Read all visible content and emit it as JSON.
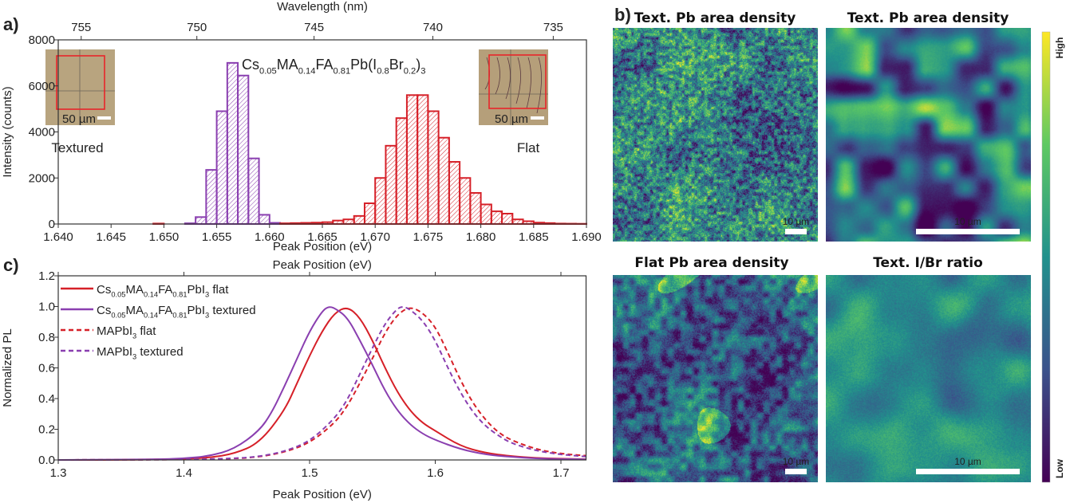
{
  "panels": {
    "a": "a)",
    "b": "b)",
    "c": "c)"
  },
  "colors": {
    "flat": "#d62028",
    "textured": "#8a3fb0",
    "axis": "#333333"
  },
  "chart_data": [
    {
      "type": "bar",
      "panel": "a",
      "xlabel": "Peak Position (eV)",
      "ylabel": "Intensity (counts)",
      "top_xlabel": "Wavelength (nm)",
      "xlim": [
        1.64,
        1.69
      ],
      "ylim": [
        0,
        8000
      ],
      "xticks": [
        "1.640",
        "1.645",
        "1.650",
        "1.655",
        "1.660",
        "1.665",
        "1.670",
        "1.675",
        "1.680",
        "1.685",
        "1.690"
      ],
      "yticks": [
        "0",
        "2000",
        "4000",
        "6000",
        "8000"
      ],
      "top_xticks": [
        "755",
        "750",
        "745",
        "740",
        "735"
      ],
      "title_segments": [
        {
          "t": "Cs"
        },
        {
          "t": "0.05",
          "sub": true
        },
        {
          "t": "MA"
        },
        {
          "t": "0.14",
          "sub": true
        },
        {
          "t": "FA"
        },
        {
          "t": "0.81",
          "sub": true
        },
        {
          "t": "Pb(I"
        },
        {
          "t": "0.8",
          "sub": true
        },
        {
          "t": "Br"
        },
        {
          "t": "0.2",
          "sub": true
        },
        {
          "t": ")"
        },
        {
          "t": "3",
          "sub": true
        }
      ],
      "bin_width": 0.001,
      "series": [
        {
          "name": "Textured",
          "color": "#8a3fb0",
          "bin_starts": [
            1.652,
            1.653,
            1.654,
            1.655,
            1.656,
            1.657,
            1.658,
            1.659,
            1.66
          ],
          "values": [
            30,
            300,
            2350,
            4900,
            7000,
            6450,
            2850,
            400,
            50
          ]
        },
        {
          "name": "Flat",
          "color": "#d62028",
          "bin_starts": [
            1.649,
            1.661,
            1.662,
            1.663,
            1.664,
            1.665,
            1.666,
            1.667,
            1.668,
            1.669,
            1.67,
            1.671,
            1.672,
            1.673,
            1.674,
            1.675,
            1.676,
            1.677,
            1.678,
            1.679,
            1.68,
            1.681,
            1.682,
            1.683,
            1.684,
            1.685,
            1.686,
            1.687,
            1.688,
            1.689
          ],
          "values": [
            20,
            30,
            40,
            50,
            60,
            80,
            150,
            200,
            350,
            900,
            2000,
            3400,
            4600,
            5600,
            5600,
            4900,
            3750,
            2700,
            2000,
            1350,
            850,
            550,
            450,
            200,
            120,
            60,
            40,
            20,
            15,
            10
          ]
        }
      ],
      "insets": [
        {
          "scale_label": "50 µm"
        },
        {
          "scale_label": "50 µm"
        }
      ]
    },
    {
      "type": "line",
      "panel": "c",
      "xlabel": "Peak Position (eV)",
      "top_xlabel": "Peak Position (eV)",
      "ylabel": "Normalized PL",
      "xlim": [
        1.3,
        1.72
      ],
      "ylim": [
        0,
        1.2
      ],
      "xticks": [
        "1.3",
        "1.4",
        "1.5",
        "1.6",
        "1.7"
      ],
      "yticks": [
        "0.0",
        "0.2",
        "0.4",
        "0.6",
        "0.8",
        "1.0",
        "1.2"
      ],
      "legend": "top-left",
      "series": [
        {
          "name_segments": [
            {
              "t": "Cs"
            },
            {
              "t": "0.05",
              "sub": true
            },
            {
              "t": "MA"
            },
            {
              "t": "0.14",
              "sub": true
            },
            {
              "t": "FA"
            },
            {
              "t": "0.81",
              "sub": true
            },
            {
              "t": "PbI"
            },
            {
              "t": "3",
              "sub": true
            },
            {
              "t": " flat"
            }
          ],
          "color": "#d62028",
          "dash": false,
          "x": [
            1.3,
            1.34,
            1.38,
            1.4,
            1.42,
            1.44,
            1.46,
            1.48,
            1.49,
            1.5,
            1.51,
            1.52,
            1.53,
            1.54,
            1.55,
            1.56,
            1.57,
            1.58,
            1.59,
            1.6,
            1.62,
            1.64,
            1.66,
            1.68,
            1.7,
            1.72
          ],
          "y": [
            0,
            0,
            0.003,
            0.006,
            0.015,
            0.04,
            0.11,
            0.32,
            0.5,
            0.68,
            0.84,
            0.96,
            1.0,
            0.93,
            0.78,
            0.6,
            0.44,
            0.32,
            0.24,
            0.19,
            0.09,
            0.045,
            0.025,
            0.013,
            0.008,
            0.005
          ]
        },
        {
          "name_segments": [
            {
              "t": "Cs"
            },
            {
              "t": "0.05",
              "sub": true
            },
            {
              "t": "MA"
            },
            {
              "t": "0.14",
              "sub": true
            },
            {
              "t": "FA"
            },
            {
              "t": "0.81",
              "sub": true
            },
            {
              "t": "PbI"
            },
            {
              "t": "3",
              "sub": true
            },
            {
              "t": " textured"
            }
          ],
          "color": "#8a3fb0",
          "dash": false,
          "x": [
            1.3,
            1.38,
            1.4,
            1.42,
            1.44,
            1.46,
            1.47,
            1.48,
            1.49,
            1.5,
            1.51,
            1.515,
            1.52,
            1.53,
            1.54,
            1.55,
            1.56,
            1.57,
            1.58,
            1.59,
            1.6,
            1.62,
            1.64,
            1.66,
            1.68,
            1.7,
            1.72
          ],
          "y": [
            0,
            0.004,
            0.01,
            0.025,
            0.07,
            0.19,
            0.31,
            0.48,
            0.66,
            0.84,
            0.97,
            1.0,
            0.99,
            0.93,
            0.78,
            0.62,
            0.45,
            0.32,
            0.23,
            0.17,
            0.13,
            0.07,
            0.035,
            0.02,
            0.01,
            0.006,
            0.004
          ]
        },
        {
          "name_segments": [
            {
              "t": "MAPbI"
            },
            {
              "t": "3",
              "sub": true
            },
            {
              "t": " flat"
            }
          ],
          "color": "#d62028",
          "dash": true,
          "x": [
            1.3,
            1.4,
            1.44,
            1.46,
            1.48,
            1.5,
            1.52,
            1.53,
            1.54,
            1.55,
            1.56,
            1.57,
            1.58,
            1.59,
            1.6,
            1.61,
            1.62,
            1.63,
            1.64,
            1.65,
            1.66,
            1.68,
            1.7,
            1.72
          ],
          "y": [
            0,
            0.002,
            0.008,
            0.02,
            0.05,
            0.11,
            0.24,
            0.35,
            0.5,
            0.66,
            0.83,
            0.95,
            1.0,
            0.96,
            0.87,
            0.7,
            0.52,
            0.37,
            0.26,
            0.18,
            0.13,
            0.07,
            0.04,
            0.028
          ]
        },
        {
          "name_segments": [
            {
              "t": "MAPbI"
            },
            {
              "t": "3",
              "sub": true
            },
            {
              "t": " textured"
            }
          ],
          "color": "#8a3fb0",
          "dash": true,
          "x": [
            1.3,
            1.4,
            1.44,
            1.46,
            1.48,
            1.5,
            1.52,
            1.53,
            1.54,
            1.55,
            1.56,
            1.57,
            1.575,
            1.58,
            1.59,
            1.6,
            1.61,
            1.62,
            1.63,
            1.64,
            1.65,
            1.66,
            1.68,
            1.7,
            1.72
          ],
          "y": [
            0,
            0.002,
            0.01,
            0.022,
            0.055,
            0.12,
            0.27,
            0.39,
            0.56,
            0.73,
            0.89,
            0.99,
            1.0,
            0.98,
            0.91,
            0.78,
            0.6,
            0.44,
            0.31,
            0.22,
            0.16,
            0.11,
            0.06,
            0.035,
            0.022
          ]
        }
      ]
    },
    {
      "type": "heatmap",
      "panel": "b",
      "colormap": "viridis",
      "colorbar": {
        "high": "High",
        "low": "Low"
      },
      "maps": [
        {
          "title": "Text. Pb area density",
          "scale_label": "10 µm"
        },
        {
          "title": "Text. Pb area density",
          "scale_label": "10 µm"
        },
        {
          "title": "Flat Pb area density",
          "scale_label": "10 µm"
        },
        {
          "title": "Text. I/Br ratio",
          "scale_label": "10 µm"
        }
      ]
    }
  ]
}
